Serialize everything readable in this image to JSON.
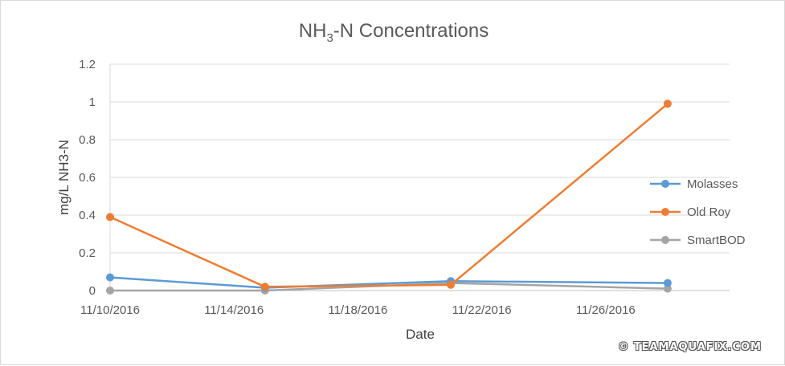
{
  "chart_data": {
    "type": "line",
    "title": "NH3-N Concentrations",
    "title_main": "NH",
    "title_sub": "3",
    "title_rest": "-N Concentrations",
    "xlabel": "Date",
    "ylabel": "mg/L NH3-N",
    "ylim": [
      0,
      1.2
    ],
    "yticks": [
      "0",
      "0.2",
      "0.4",
      "0.6",
      "0.8",
      "1",
      "1.2"
    ],
    "x_axis_range": [
      "2016-11-10",
      "2016-11-30"
    ],
    "xticks": [
      "11/10/2016",
      "11/14/2016",
      "11/18/2016",
      "11/22/2016",
      "11/26/2016"
    ],
    "xtick_dates": [
      "2016-11-10",
      "2016-11-14",
      "2016-11-18",
      "2016-11-22",
      "2016-11-26"
    ],
    "grid": true,
    "legend_position": "right",
    "series": [
      {
        "name": "Molasses",
        "color": "#5b9bd5",
        "points": [
          {
            "x": "2016-11-10",
            "y": 0.07
          },
          {
            "x": "2016-11-15",
            "y": 0.015
          },
          {
            "x": "2016-11-21",
            "y": 0.05
          },
          {
            "x": "2016-11-28",
            "y": 0.04
          }
        ]
      },
      {
        "name": "Old Roy",
        "color": "#ed7d31",
        "points": [
          {
            "x": "2016-11-10",
            "y": 0.39
          },
          {
            "x": "2016-11-15",
            "y": 0.02
          },
          {
            "x": "2016-11-21",
            "y": 0.03
          },
          {
            "x": "2016-11-28",
            "y": 0.99
          }
        ]
      },
      {
        "name": "SmartBOD",
        "color": "#a5a5a5",
        "points": [
          {
            "x": "2016-11-10",
            "y": 0.0
          },
          {
            "x": "2016-11-15",
            "y": 0.0
          },
          {
            "x": "2016-11-21",
            "y": 0.04
          },
          {
            "x": "2016-11-28",
            "y": 0.01
          }
        ]
      }
    ]
  },
  "watermark": "© TEAMAQUAFIX.COM"
}
